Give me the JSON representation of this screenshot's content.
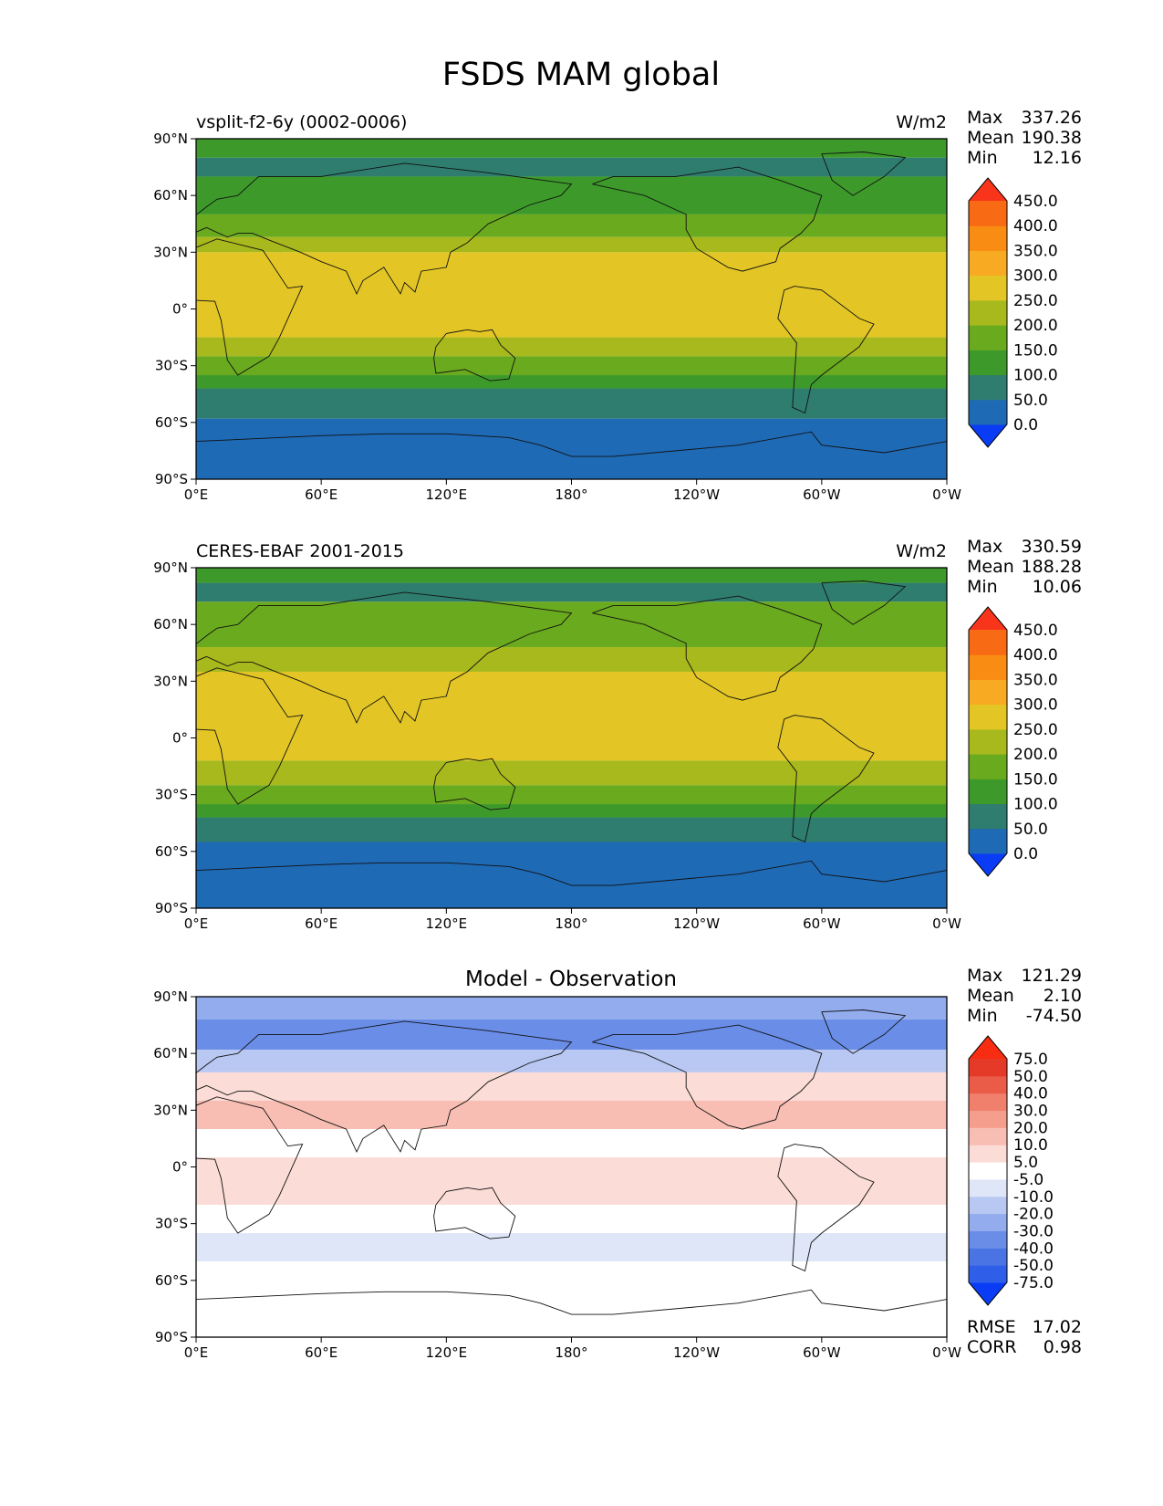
{
  "figure": {
    "title": "FSDS MAM global"
  },
  "chart_data": [
    {
      "type": "heatmap",
      "title": "vsplit-f2-6y (0002-0006)",
      "units": "W/m2",
      "xlabel": "",
      "ylabel": "",
      "x_ticks": [
        "0°E",
        "60°E",
        "120°E",
        "180°",
        "120°W",
        "60°W",
        "0°W"
      ],
      "y_ticks": [
        "90°N",
        "60°N",
        "30°N",
        "0°",
        "30°S",
        "60°S",
        "90°S"
      ],
      "xlim": [
        0,
        360
      ],
      "ylim": [
        -90,
        90
      ],
      "stats": [
        {
          "label": "Max",
          "value": "337.26"
        },
        {
          "label": "Mean",
          "value": "190.38"
        },
        {
          "label": "Min",
          "value": "12.16"
        }
      ],
      "colorbar": {
        "labels": [
          "0.0",
          "50.0",
          "100.0",
          "150.0",
          "200.0",
          "250.0",
          "300.0",
          "350.0",
          "400.0",
          "450.0"
        ],
        "colors": [
          "#0a3cf5",
          "#1f6ab5",
          "#2e7d6f",
          "#3d9a2a",
          "#6aaa1e",
          "#a7b91c",
          "#e3c625",
          "#f8ab22",
          "#f98c12",
          "#f96a14",
          "#f8351a"
        ]
      },
      "zonal_bands": [
        {
          "lat_top": 90,
          "lat_bottom": 80,
          "color": "#3d9a2a"
        },
        {
          "lat_top": 80,
          "lat_bottom": 70,
          "color": "#2e7d6f"
        },
        {
          "lat_top": 70,
          "lat_bottom": 50,
          "color": "#3d9a2a"
        },
        {
          "lat_top": 50,
          "lat_bottom": 38,
          "color": "#6aaa1e"
        },
        {
          "lat_top": 38,
          "lat_bottom": 30,
          "color": "#a7b91c"
        },
        {
          "lat_top": 30,
          "lat_bottom": -15,
          "color": "#e3c625"
        },
        {
          "lat_top": -15,
          "lat_bottom": -25,
          "color": "#a7b91c"
        },
        {
          "lat_top": -25,
          "lat_bottom": -35,
          "color": "#6aaa1e"
        },
        {
          "lat_top": -35,
          "lat_bottom": -42,
          "color": "#3d9a2a"
        },
        {
          "lat_top": -42,
          "lat_bottom": -58,
          "color": "#2e7d6f"
        },
        {
          "lat_top": -58,
          "lat_bottom": -90,
          "color": "#1f6ab5"
        }
      ]
    },
    {
      "type": "heatmap",
      "title": "CERES-EBAF 2001-2015",
      "units": "W/m2",
      "xlabel": "",
      "ylabel": "",
      "x_ticks": [
        "0°E",
        "60°E",
        "120°E",
        "180°",
        "120°W",
        "60°W",
        "0°W"
      ],
      "y_ticks": [
        "90°N",
        "60°N",
        "30°N",
        "0°",
        "30°S",
        "60°S",
        "90°S"
      ],
      "xlim": [
        0,
        360
      ],
      "ylim": [
        -90,
        90
      ],
      "stats": [
        {
          "label": "Max",
          "value": "330.59"
        },
        {
          "label": "Mean",
          "value": "188.28"
        },
        {
          "label": "Min",
          "value": "10.06"
        }
      ],
      "colorbar": {
        "labels": [
          "0.0",
          "50.0",
          "100.0",
          "150.0",
          "200.0",
          "250.0",
          "300.0",
          "350.0",
          "400.0",
          "450.0"
        ],
        "colors": [
          "#0a3cf5",
          "#1f6ab5",
          "#2e7d6f",
          "#3d9a2a",
          "#6aaa1e",
          "#a7b91c",
          "#e3c625",
          "#f8ab22",
          "#f98c12",
          "#f96a14",
          "#f8351a"
        ]
      },
      "zonal_bands": [
        {
          "lat_top": 90,
          "lat_bottom": 82,
          "color": "#3d9a2a"
        },
        {
          "lat_top": 82,
          "lat_bottom": 72,
          "color": "#2e7d6f"
        },
        {
          "lat_top": 72,
          "lat_bottom": 48,
          "color": "#6aaa1e"
        },
        {
          "lat_top": 48,
          "lat_bottom": 35,
          "color": "#a7b91c"
        },
        {
          "lat_top": 35,
          "lat_bottom": -12,
          "color": "#e3c625"
        },
        {
          "lat_top": -12,
          "lat_bottom": -25,
          "color": "#a7b91c"
        },
        {
          "lat_top": -25,
          "lat_bottom": -35,
          "color": "#6aaa1e"
        },
        {
          "lat_top": -35,
          "lat_bottom": -42,
          "color": "#3d9a2a"
        },
        {
          "lat_top": -42,
          "lat_bottom": -55,
          "color": "#2e7d6f"
        },
        {
          "lat_top": -55,
          "lat_bottom": -90,
          "color": "#1f6ab5"
        }
      ]
    },
    {
      "type": "heatmap",
      "title": "Model - Observation",
      "units": "",
      "xlabel": "",
      "ylabel": "",
      "x_ticks": [
        "0°E",
        "60°E",
        "120°E",
        "180°",
        "120°W",
        "60°W",
        "0°W"
      ],
      "y_ticks": [
        "90°N",
        "60°N",
        "30°N",
        "0°",
        "30°S",
        "60°S",
        "90°S"
      ],
      "xlim": [
        0,
        360
      ],
      "ylim": [
        -90,
        90
      ],
      "stats": [
        {
          "label": "Max",
          "value": "121.29"
        },
        {
          "label": "Mean",
          "value": "2.10"
        },
        {
          "label": "Min",
          "value": "-74.50"
        }
      ],
      "extra_stats": [
        {
          "label": "RMSE",
          "value": "17.02"
        },
        {
          "label": "CORR",
          "value": "0.98"
        }
      ],
      "colorbar": {
        "labels": [
          "-75.0",
          "-50.0",
          "-40.0",
          "-30.0",
          "-20.0",
          "-10.0",
          "-5.0",
          "5.0",
          "10.0",
          "20.0",
          "30.0",
          "40.0",
          "50.0",
          "75.0"
        ],
        "colors": [
          "#0a3cf5",
          "#2f5fe8",
          "#4a73e4",
          "#6a8ee8",
          "#92acee",
          "#b8c8f2",
          "#dfe6f8",
          "#ffffff",
          "#fbdcd6",
          "#f8beb3",
          "#f59e8e",
          "#f07f6c",
          "#eb5c48",
          "#e63a28",
          "#f82c10"
        ]
      },
      "zonal_bands": [
        {
          "lat_top": 90,
          "lat_bottom": 78,
          "color": "#92acee"
        },
        {
          "lat_top": 78,
          "lat_bottom": 62,
          "color": "#6a8ee8"
        },
        {
          "lat_top": 62,
          "lat_bottom": 50,
          "color": "#b8c8f2"
        },
        {
          "lat_top": 50,
          "lat_bottom": 35,
          "color": "#fbdcd6"
        },
        {
          "lat_top": 35,
          "lat_bottom": 20,
          "color": "#f8beb3"
        },
        {
          "lat_top": 20,
          "lat_bottom": 5,
          "color": "#ffffff"
        },
        {
          "lat_top": 5,
          "lat_bottom": -20,
          "color": "#fbdcd6"
        },
        {
          "lat_top": -20,
          "lat_bottom": -35,
          "color": "#ffffff"
        },
        {
          "lat_top": -35,
          "lat_bottom": -50,
          "color": "#dfe6f8"
        },
        {
          "lat_top": -50,
          "lat_bottom": -90,
          "color": "#ffffff"
        }
      ]
    }
  ]
}
